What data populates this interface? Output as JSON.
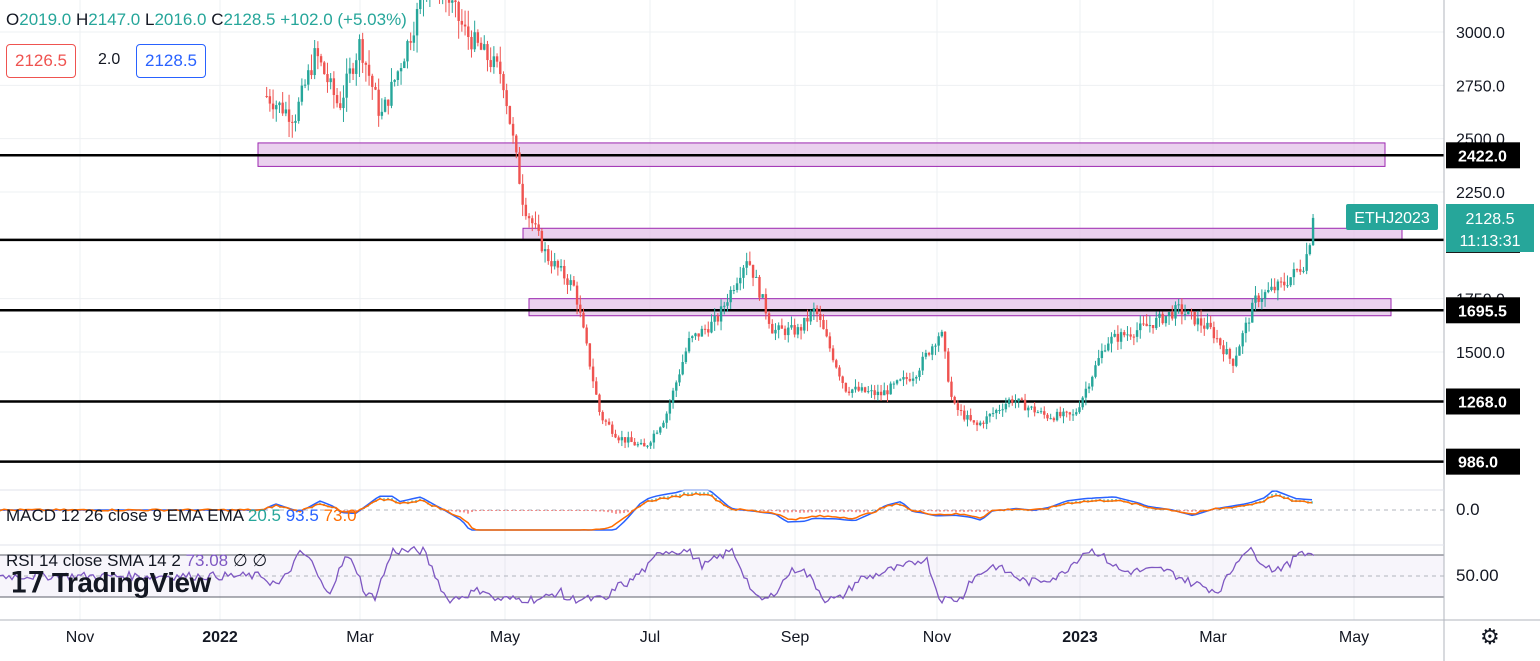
{
  "legend": {
    "open_label": "O",
    "open": "2019.0",
    "high_label": "H",
    "high": "2147.0",
    "low_label": "L",
    "low": "2016.0",
    "close_label": "C",
    "close": "2128.5",
    "change": "+102.0 (+5.03%)"
  },
  "quote": {
    "bid": "2126.5",
    "spread": "2.0",
    "ask": "2128.5"
  },
  "symbol_tag": "ETHJ2023",
  "last_price": "2128.5",
  "countdown": "11:13:31",
  "price_axis": {
    "ticks": [
      "3000.0",
      "2750.0",
      "2500.0",
      "2250.0",
      "1750.0",
      "1500.0"
    ],
    "levels": [
      "2422.0",
      "2025.5",
      "1695.5",
      "1268.0",
      "986.0"
    ]
  },
  "time_axis": [
    "Nov",
    "2022",
    "Mar",
    "May",
    "Jul",
    "Sep",
    "Nov",
    "2023",
    "Mar",
    "May"
  ],
  "macd": {
    "label": "MACD 12 26 close 9 EMA EMA",
    "v1": "20.5",
    "v2": "93.5",
    "v3": "73.0",
    "axis": "0.0"
  },
  "rsi": {
    "label": "RSI 14 close SMA 14 2",
    "v1": "73.08",
    "v2": "∅",
    "v3": "∅",
    "axis": "50.00"
  },
  "brand": "TradingView",
  "settings_icon": "gear-icon",
  "colors": {
    "up": "#26a69a",
    "down": "#ef5350",
    "zone": "#e1bee7",
    "zone_border": "#9c27b0",
    "macd": "#2962ff",
    "signal": "#ff6d00",
    "rsi": "#7e57c2",
    "tag": "#26a69a"
  },
  "chart_data": {
    "type": "candlestick",
    "ylim": [
      850,
      3100
    ],
    "support_resistance_levels": [
      2422.0,
      2025.5,
      1695.5,
      1268.0,
      986.0
    ],
    "zones": [
      [
        2370,
        2480
      ],
      [
        2025,
        2080
      ],
      [
        1670,
        1750
      ]
    ],
    "close_path": [
      [
        "2022-01-20",
        2700
      ],
      [
        "2022-02-01",
        2600
      ],
      [
        "2022-02-10",
        2900
      ],
      [
        "2022-02-20",
        2650
      ],
      [
        "2022-03-01",
        2950
      ],
      [
        "2022-03-10",
        2600
      ],
      [
        "2022-03-20",
        2900
      ],
      [
        "2022-04-01",
        3300
      ],
      [
        "2022-04-15",
        3000
      ],
      [
        "2022-05-01",
        2800
      ],
      [
        "2022-05-10",
        2200
      ],
      [
        "2022-05-20",
        1950
      ],
      [
        "2022-06-01",
        1800
      ],
      [
        "2022-06-12",
        1200
      ],
      [
        "2022-06-20",
        1100
      ],
      [
        "2022-07-01",
        1050
      ],
      [
        "2022-07-10",
        1200
      ],
      [
        "2022-07-20",
        1550
      ],
      [
        "2022-08-01",
        1650
      ],
      [
        "2022-08-14",
        1950
      ],
      [
        "2022-08-25",
        1600
      ],
      [
        "2022-09-05",
        1600
      ],
      [
        "2022-09-12",
        1700
      ],
      [
        "2022-09-25",
        1330
      ],
      [
        "2022-10-10",
        1300
      ],
      [
        "2022-10-25",
        1400
      ],
      [
        "2022-11-05",
        1600
      ],
      [
        "2022-11-10",
        1250
      ],
      [
        "2022-11-20",
        1150
      ],
      [
        "2022-12-05",
        1280
      ],
      [
        "2022-12-20",
        1200
      ],
      [
        "2023-01-01",
        1200
      ],
      [
        "2023-01-15",
        1550
      ],
      [
        "2023-02-01",
        1620
      ],
      [
        "2023-02-15",
        1700
      ],
      [
        "2023-03-01",
        1600
      ],
      [
        "2023-03-10",
        1450
      ],
      [
        "2023-03-20",
        1750
      ],
      [
        "2023-04-01",
        1820
      ],
      [
        "2023-04-10",
        1920
      ],
      [
        "2023-04-14",
        2128.5
      ]
    ]
  }
}
